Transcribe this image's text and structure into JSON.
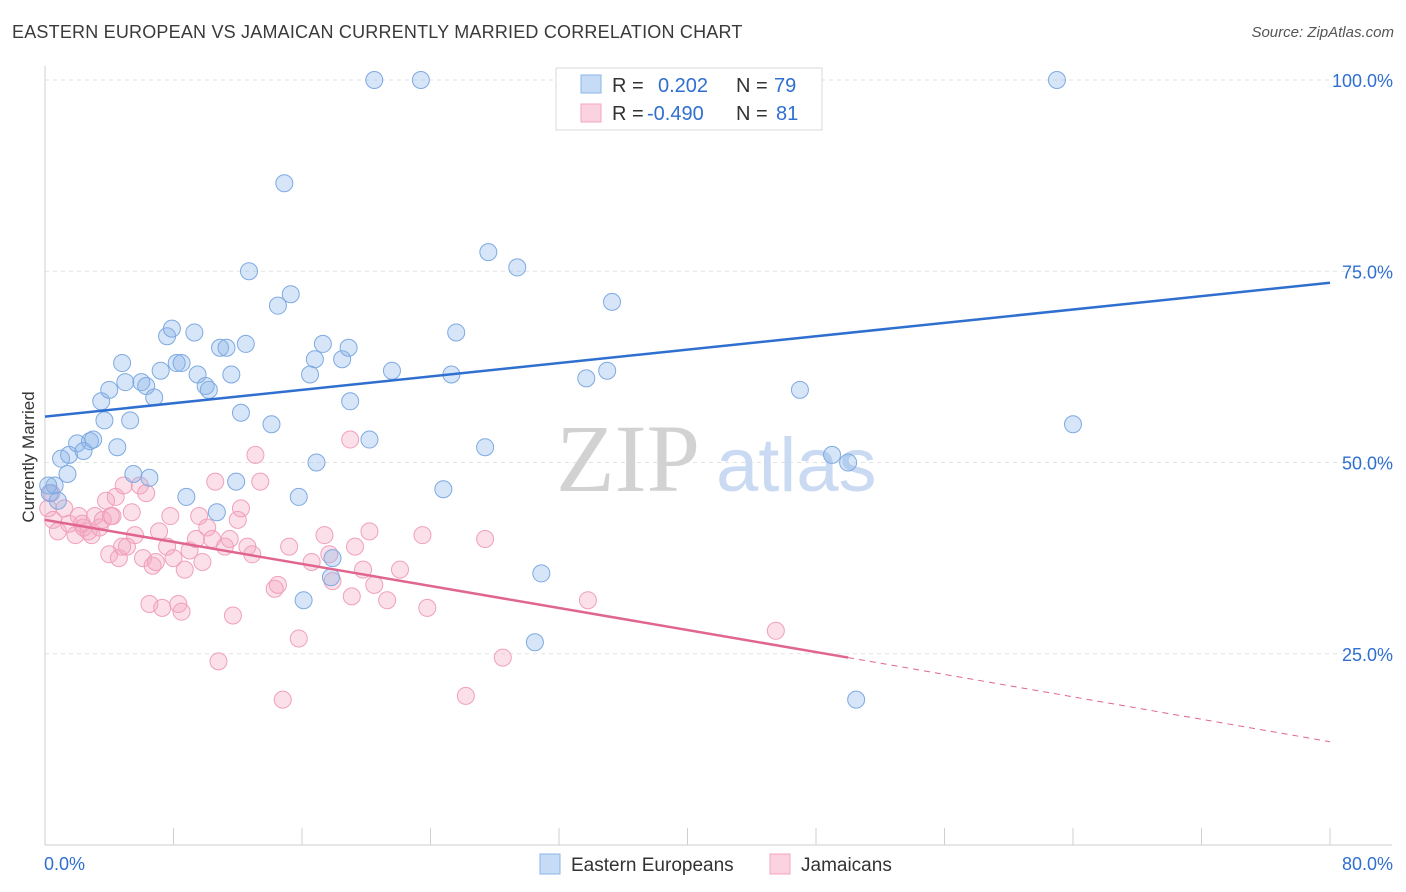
{
  "header": {
    "title": "EASTERN EUROPEAN VS JAMAICAN CURRENTLY MARRIED CORRELATION CHART",
    "source": "Source: ZipAtlas.com"
  },
  "watermark": {
    "zip": "ZIP",
    "atlas": "atlas"
  },
  "legend": {
    "rows": [
      {
        "r_label": "R =",
        "r_value": "0.202",
        "n_label": "N =",
        "n_value": "79",
        "color": "#8ab4e8"
      },
      {
        "r_label": "R =",
        "r_value": "-0.490",
        "n_label": "N =",
        "n_value": "81",
        "color": "#f3a6c0"
      }
    ]
  },
  "bottom_legend": [
    "Eastern Europeans",
    "Jamaicans"
  ],
  "chart_data": {
    "type": "scatter",
    "title": "EASTERN EUROPEAN VS JAMAICAN CURRENTLY MARRIED CORRELATION CHART",
    "xlabel": "",
    "ylabel": "Currently Married",
    "xlim": [
      0,
      80
    ],
    "ylim": [
      0,
      100
    ],
    "x_tick_labels": [
      "0.0%",
      "80.0%"
    ],
    "y_tick_labels": [
      "25.0%",
      "50.0%",
      "75.0%",
      "100.0%"
    ],
    "y_ticks": [
      25,
      50,
      75,
      100
    ],
    "grid": true,
    "colors": {
      "eastern": "#8ab4e8",
      "eastern_line": "#2f6fd0",
      "jamaican": "#f3a6c0",
      "jamaican_line": "#e06690"
    },
    "series": [
      {
        "name": "Eastern Europeans",
        "trend": {
          "x": [
            0,
            80
          ],
          "y": [
            56.0,
            73.5
          ]
        },
        "points": [
          [
            0.3,
            46
          ],
          [
            0.6,
            47
          ],
          [
            1.0,
            50.5
          ],
          [
            1.4,
            48.5
          ],
          [
            1.5,
            51
          ],
          [
            2.0,
            52.5
          ],
          [
            2.4,
            51.5
          ],
          [
            2.8,
            52.8
          ],
          [
            3.0,
            53
          ],
          [
            3.5,
            58
          ],
          [
            3.7,
            55.5
          ],
          [
            4.0,
            59.5
          ],
          [
            4.5,
            52
          ],
          [
            4.8,
            63
          ],
          [
            5.0,
            60.5
          ],
          [
            5.3,
            55.5
          ],
          [
            5.5,
            48.5
          ],
          [
            6.0,
            60.5
          ],
          [
            6.3,
            60
          ],
          [
            6.8,
            58.5
          ],
          [
            6.5,
            48
          ],
          [
            7.2,
            62
          ],
          [
            7.6,
            66.5
          ],
          [
            7.9,
            67.5
          ],
          [
            8.2,
            63
          ],
          [
            8.5,
            63
          ],
          [
            8.8,
            45.5
          ],
          [
            9.3,
            67
          ],
          [
            9.5,
            61.5
          ],
          [
            10.0,
            60
          ],
          [
            10.2,
            59.5
          ],
          [
            10.7,
            43.5
          ],
          [
            10.9,
            65
          ],
          [
            11.3,
            65
          ],
          [
            11.6,
            61.5
          ],
          [
            11.9,
            47.5
          ],
          [
            12.2,
            56.5
          ],
          [
            12.5,
            65.5
          ],
          [
            12.7,
            75
          ],
          [
            14.1,
            55
          ],
          [
            14.5,
            70.5
          ],
          [
            14.9,
            86.5
          ],
          [
            15.3,
            72
          ],
          [
            15.8,
            45.5
          ],
          [
            16.1,
            32
          ],
          [
            16.5,
            61.5
          ],
          [
            16.8,
            63.5
          ],
          [
            16.9,
            50
          ],
          [
            17.3,
            65.5
          ],
          [
            17.8,
            35
          ],
          [
            17.9,
            37.5
          ],
          [
            18.5,
            63.5
          ],
          [
            18.9,
            65
          ],
          [
            19.0,
            58
          ],
          [
            20.2,
            53
          ],
          [
            20.5,
            100
          ],
          [
            21.6,
            62
          ],
          [
            23.4,
            100
          ],
          [
            24.8,
            46.5
          ],
          [
            25.3,
            61.5
          ],
          [
            25.6,
            67
          ],
          [
            27.4,
            52
          ],
          [
            27.6,
            77.5
          ],
          [
            29.4,
            75.5
          ],
          [
            30.5,
            26.5
          ],
          [
            30.9,
            35.5
          ],
          [
            33.7,
            61
          ],
          [
            35.0,
            62
          ],
          [
            35.3,
            71
          ],
          [
            36.5,
            100
          ],
          [
            37.0,
            100
          ],
          [
            47.0,
            59.5
          ],
          [
            49.0,
            51
          ],
          [
            50.0,
            50
          ],
          [
            50.5,
            19
          ],
          [
            63.0,
            100
          ],
          [
            64.0,
            55
          ],
          [
            0.2,
            47
          ],
          [
            0.8,
            45
          ]
        ]
      },
      {
        "name": "Jamaicans",
        "trend": {
          "x": [
            0,
            50
          ],
          "y": [
            42.5,
            24.5
          ]
        },
        "trend_dashed": {
          "x": [
            50,
            80
          ],
          "y": [
            24.5,
            13.5
          ]
        },
        "points": [
          [
            0.2,
            44
          ],
          [
            0.5,
            42.5
          ],
          [
            0.8,
            41
          ],
          [
            1.2,
            44
          ],
          [
            1.5,
            42
          ],
          [
            1.9,
            40.5
          ],
          [
            2.1,
            43
          ],
          [
            2.4,
            41.5
          ],
          [
            2.7,
            41
          ],
          [
            2.9,
            40.5
          ],
          [
            3.1,
            43
          ],
          [
            3.4,
            41.5
          ],
          [
            3.6,
            42.5
          ],
          [
            3.8,
            45
          ],
          [
            4.0,
            38
          ],
          [
            4.2,
            43
          ],
          [
            4.4,
            45.5
          ],
          [
            4.6,
            37.5
          ],
          [
            4.8,
            39
          ],
          [
            4.9,
            47
          ],
          [
            5.1,
            39
          ],
          [
            5.4,
            43.5
          ],
          [
            5.6,
            40.5
          ],
          [
            5.9,
            47
          ],
          [
            6.1,
            37.5
          ],
          [
            6.3,
            46
          ],
          [
            6.5,
            31.5
          ],
          [
            6.7,
            36.5
          ],
          [
            6.9,
            37
          ],
          [
            7.1,
            41
          ],
          [
            7.3,
            31
          ],
          [
            7.6,
            39
          ],
          [
            7.8,
            43
          ],
          [
            8.0,
            37.5
          ],
          [
            8.3,
            31.5
          ],
          [
            8.5,
            30.5
          ],
          [
            8.7,
            36
          ],
          [
            9.0,
            38.5
          ],
          [
            9.4,
            40
          ],
          [
            9.6,
            43
          ],
          [
            9.8,
            37
          ],
          [
            10.1,
            41.5
          ],
          [
            10.4,
            40
          ],
          [
            10.6,
            47.5
          ],
          [
            10.8,
            24
          ],
          [
            11.2,
            39
          ],
          [
            11.5,
            40
          ],
          [
            11.7,
            30
          ],
          [
            12.0,
            42.5
          ],
          [
            12.2,
            44
          ],
          [
            12.6,
            39
          ],
          [
            12.9,
            38
          ],
          [
            13.1,
            51
          ],
          [
            13.4,
            47.5
          ],
          [
            14.3,
            33.5
          ],
          [
            14.5,
            34
          ],
          [
            14.8,
            19
          ],
          [
            15.2,
            39
          ],
          [
            15.8,
            27
          ],
          [
            16.6,
            37
          ],
          [
            17.4,
            40.5
          ],
          [
            17.7,
            38
          ],
          [
            17.9,
            34.5
          ],
          [
            19.0,
            53
          ],
          [
            19.1,
            32.5
          ],
          [
            19.3,
            39
          ],
          [
            19.8,
            36
          ],
          [
            20.2,
            41
          ],
          [
            20.5,
            34
          ],
          [
            21.3,
            32
          ],
          [
            22.1,
            36
          ],
          [
            23.5,
            40.5
          ],
          [
            23.8,
            31
          ],
          [
            26.2,
            19.5
          ],
          [
            27.4,
            40
          ],
          [
            28.5,
            24.5
          ],
          [
            33.8,
            32
          ],
          [
            45.5,
            28
          ],
          [
            0.4,
            46
          ],
          [
            2.3,
            42
          ],
          [
            4.1,
            43
          ]
        ]
      }
    ]
  }
}
